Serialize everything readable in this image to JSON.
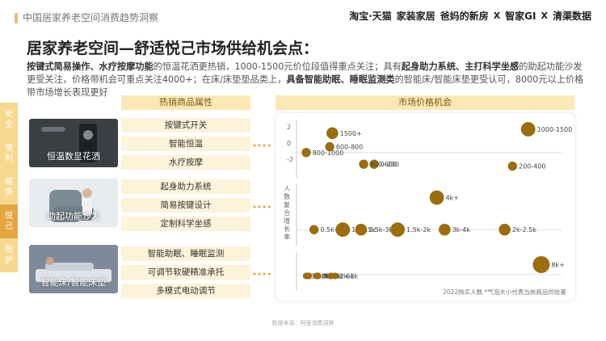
{
  "header": {
    "title": "中国居家养老空间消费趋势洞察",
    "brands": [
      "淘宝·天猫",
      "家装家居",
      "爸妈的新房",
      "智家GI",
      "清渠数据"
    ],
    "separator": "X"
  },
  "page": {
    "title": "居家养老空间—舒适悦己市场供给机会点：",
    "intro_segments": [
      {
        "text": "按键式简易操作、水疗按摩功能",
        "bold": true
      },
      {
        "text": "的恒温花洒更热销，1000-1500元价位段值得重点关注；具有",
        "bold": false
      },
      {
        "text": "起身助力系统、主打科学坐感",
        "bold": true
      },
      {
        "text": "的助起功能沙发更受关注，价格带机会可重点关注4000+；在床/床垫垫品类上，",
        "bold": false
      },
      {
        "text": "具备智能助眠、睡眠监测类",
        "bold": true
      },
      {
        "text": "的智能床/智能床垫更受认可，8000元以上价格带市场增长表现更好",
        "bold": false
      }
    ]
  },
  "sidetabs": [
    {
      "label": "安全",
      "active": false
    },
    {
      "label": "便利",
      "active": false
    },
    {
      "label": "健康",
      "active": false
    },
    {
      "label": "悦己",
      "active": true
    },
    {
      "label": "陪护",
      "active": false
    }
  ],
  "columns": {
    "attributes": "热销商品属性",
    "market": "市场价格机会"
  },
  "products": [
    {
      "caption": "恒温数显花洒",
      "attributes": [
        "按键式开关",
        "智能恒温",
        "水疗按摩"
      ]
    },
    {
      "caption": "助起功能沙发",
      "attributes": [
        "起身助力系统",
        "简易按键设计",
        "定制科学坐感"
      ]
    },
    {
      "caption": "智能床/智能床垫",
      "attributes": [
        "智能助眠、睡眠监测",
        "可调节软硬精准承托",
        "多模式电动调节"
      ]
    }
  ],
  "chart_data": [
    {
      "type": "scatter",
      "product": "恒温数显花洒",
      "y_tick_labels": [
        "2",
        "0",
        "-2"
      ],
      "points": [
        {
          "label": "1500+",
          "x": 1,
          "y": 1.0,
          "size": 3
        },
        {
          "label": "800-1000",
          "x": 0,
          "y": 0,
          "size": 2
        },
        {
          "label": "600-800",
          "x": 0.9,
          "y": 0.3,
          "size": 2
        },
        {
          "label": "0-200",
          "x": 2.6,
          "y": -0.6,
          "size": 2
        },
        {
          "label": "400-600",
          "x": 2.2,
          "y": -0.6,
          "size": 2
        },
        {
          "label": "1000-1500",
          "x": 8.5,
          "y": 1.2,
          "size": 4
        },
        {
          "label": "200-400",
          "x": 7.9,
          "y": -0.7,
          "size": 2
        }
      ]
    },
    {
      "type": "scatter",
      "product": "助起功能沙发",
      "ylabel": "人数复合增长率",
      "points": [
        {
          "label": "4k+",
          "x": 5.0,
          "y": 1.2,
          "size": 4
        },
        {
          "label": "0.5k-1k",
          "x": 0.3,
          "y": 0,
          "size": 2
        },
        {
          "label": "1k-1.5k",
          "x": 1.4,
          "y": 0,
          "size": 4
        },
        {
          "label": "2.5k-3k",
          "x": 2.1,
          "y": 0,
          "size": 3
        },
        {
          "label": "1.5k-2k",
          "x": 3.5,
          "y": 0,
          "size": 4
        },
        {
          "label": "3k-4k",
          "x": 5.3,
          "y": 0,
          "size": 3
        },
        {
          "label": "2k-2.5k",
          "x": 7.6,
          "y": 0,
          "size": 3
        }
      ]
    },
    {
      "type": "scatter",
      "product": "智能床/智能床垫",
      "points": [
        {
          "label": "8k+",
          "x": 9,
          "y": 0.4,
          "size": 5
        },
        {
          "label": "1k-2k",
          "x": 0,
          "y": -0.05,
          "size": 1
        },
        {
          "label": "7k-8k",
          "x": 0.1,
          "y": -0.05,
          "size": 1
        },
        {
          "label": "6k-7k",
          "x": 0.4,
          "y": -0.05,
          "size": 1
        },
        {
          "label": "3k-5k",
          "x": 0.45,
          "y": -0.05,
          "size": 1
        },
        {
          "label": "5k-6k",
          "x": 0.95,
          "y": -0.05,
          "size": 1
        },
        {
          "label": "2k-3k",
          "x": 1.1,
          "y": -0.05,
          "size": 1
        }
      ]
    }
  ],
  "chart_note": "2022购买人数 *气泡大小代表当前商品供给量",
  "footer": {
    "source": "数据来源：阿里消费洞察"
  },
  "colors": {
    "accent": "#e4a640",
    "bubble": "#9b6d0c",
    "header_bg": "#fbe8b5"
  }
}
